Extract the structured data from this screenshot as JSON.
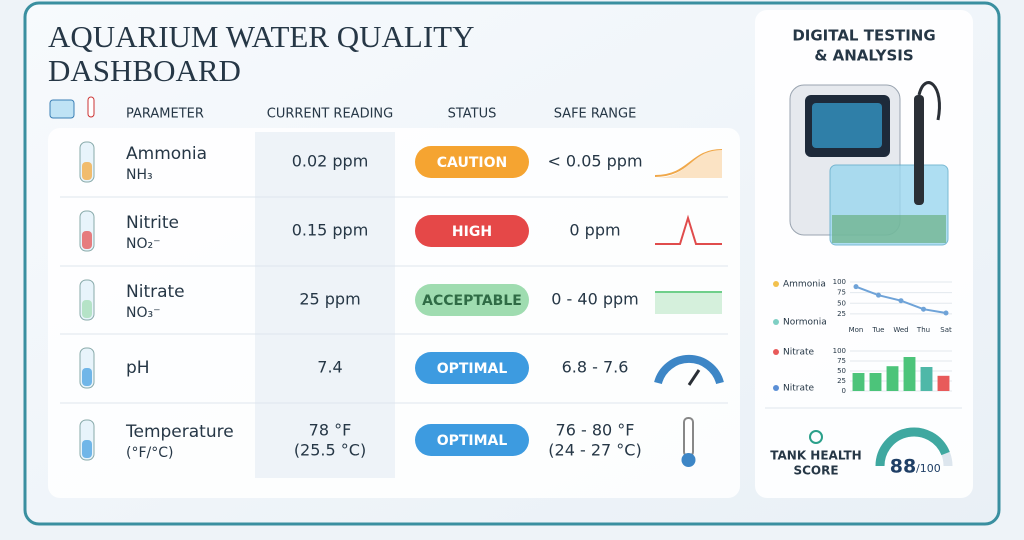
{
  "header": {
    "title_line1": "AQUARIUM WATER QUALITY",
    "title_line2": "DASHBOARD"
  },
  "table": {
    "columns": [
      "PARAMETER",
      "CURRENT READING",
      "STATUS",
      "SAFE RANGE"
    ],
    "rows": [
      {
        "name": "Ammonia",
        "subtitle": "NH₃",
        "reading": [
          "0.02 ppm"
        ],
        "status": "CAUTION",
        "status_color": "#f5a431",
        "safe_range": [
          "< 0.05 ppm"
        ]
      },
      {
        "name": "Nitrite",
        "subtitle": "NO₂⁻",
        "reading": [
          "0.15 ppm"
        ],
        "status": "HIGH",
        "status_color": "#e54848",
        "safe_range": [
          "0 ppm"
        ]
      },
      {
        "name": "Nitrate",
        "subtitle": "NO₃⁻",
        "reading": [
          "25 ppm"
        ],
        "status": "ACCEPTABLE",
        "status_color": "#9fdcb0",
        "status_text_color": "#2f6b45",
        "safe_range": [
          "0 - 40 ppm"
        ]
      },
      {
        "name": "pH",
        "reading": [
          "7.4"
        ],
        "status": "OPTIMAL",
        "status_color": "#3d9be0",
        "safe_range": [
          "6.8 - 7.6"
        ]
      },
      {
        "name": "Temperature",
        "subtitle": "(°F/°C)",
        "reading": [
          "78 °F",
          "(25.5 °C)"
        ],
        "status": "OPTIMAL",
        "status_color": "#3d9be0",
        "safe_range": [
          "76 - 80 °F",
          "(24 - 27 °C)"
        ]
      }
    ]
  },
  "panel": {
    "title": [
      "DIGITAL TESTING",
      "& ANALYSIS"
    ],
    "health": {
      "label": [
        "TANK HEALTH",
        "SCORE"
      ],
      "score": 88,
      "out_of": {
        "value": 100,
        "label": "/100"
      }
    }
  },
  "chart_data": [
    {
      "type": "line",
      "categories": [
        "Mon",
        "Tue",
        "Wed",
        "Thu",
        "Sat"
      ],
      "legend": [
        {
          "name": "Ammonia",
          "color": "#f2c14e"
        },
        {
          "name": "Normonia",
          "color": "#7fcfc4"
        }
      ],
      "series": [
        {
          "color": "#6fa3d8",
          "values": [
            89,
            69,
            56,
            36,
            27
          ]
        }
      ],
      "ylim": [
        20,
        100
      ],
      "yticks": [
        25,
        50,
        75,
        100
      ],
      "grid": true
    },
    {
      "type": "bar",
      "values": [
        45,
        45,
        62,
        85,
        60,
        38
      ],
      "colors": [
        "#4cc47a",
        "#4cc47a",
        "#4cc47a",
        "#4cc47a",
        "#4fb8a8",
        "#e85a5a"
      ],
      "legend": [
        {
          "name": "Nitrate",
          "color": "#e85a5a"
        },
        {
          "name": "Nitrate",
          "color": "#5b8fd6"
        }
      ],
      "ylim": [
        0,
        100
      ],
      "yticks": [
        0,
        25,
        50,
        75,
        100
      ],
      "grid": true
    }
  ]
}
